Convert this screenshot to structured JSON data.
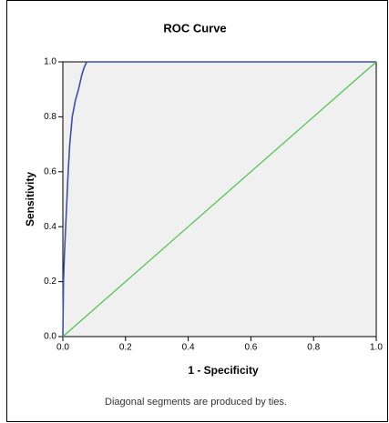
{
  "chart_data": {
    "type": "line",
    "title": "ROC Curve",
    "x_label": "1 - Specificity",
    "y_label": "Sensitivity",
    "note": "Diagonal segments are produced by ties.",
    "xlim": [
      0,
      1
    ],
    "ylim": [
      0,
      1
    ],
    "xticks": [
      {
        "value": 0,
        "label": "0.0"
      },
      0.2,
      0.4,
      0.6,
      0.8,
      {
        "value": 1,
        "label": "1.0"
      }
    ],
    "yticks": [
      {
        "value": 0,
        "label": "0.0"
      },
      0.2,
      0.4,
      0.6,
      0.8,
      {
        "value": 1,
        "label": "1.0"
      }
    ],
    "series": [
      {
        "color": "#3f4fa8",
        "x": [
          0,
          0.002,
          0.005,
          0.009,
          0.013,
          0.017,
          0.022,
          0.03,
          0.04,
          0.05,
          0.06,
          0.068,
          0.076,
          1
        ],
        "values": [
          0,
          0.2,
          0.3,
          0.4,
          0.5,
          0.6,
          0.7,
          0.8,
          0.86,
          0.9,
          0.95,
          0.98,
          1,
          1
        ]
      },
      {
        "color": "#4cc34c",
        "x": [
          0,
          1
        ],
        "values": [
          0,
          1
        ]
      }
    ],
    "background": "#f0f0f0"
  }
}
